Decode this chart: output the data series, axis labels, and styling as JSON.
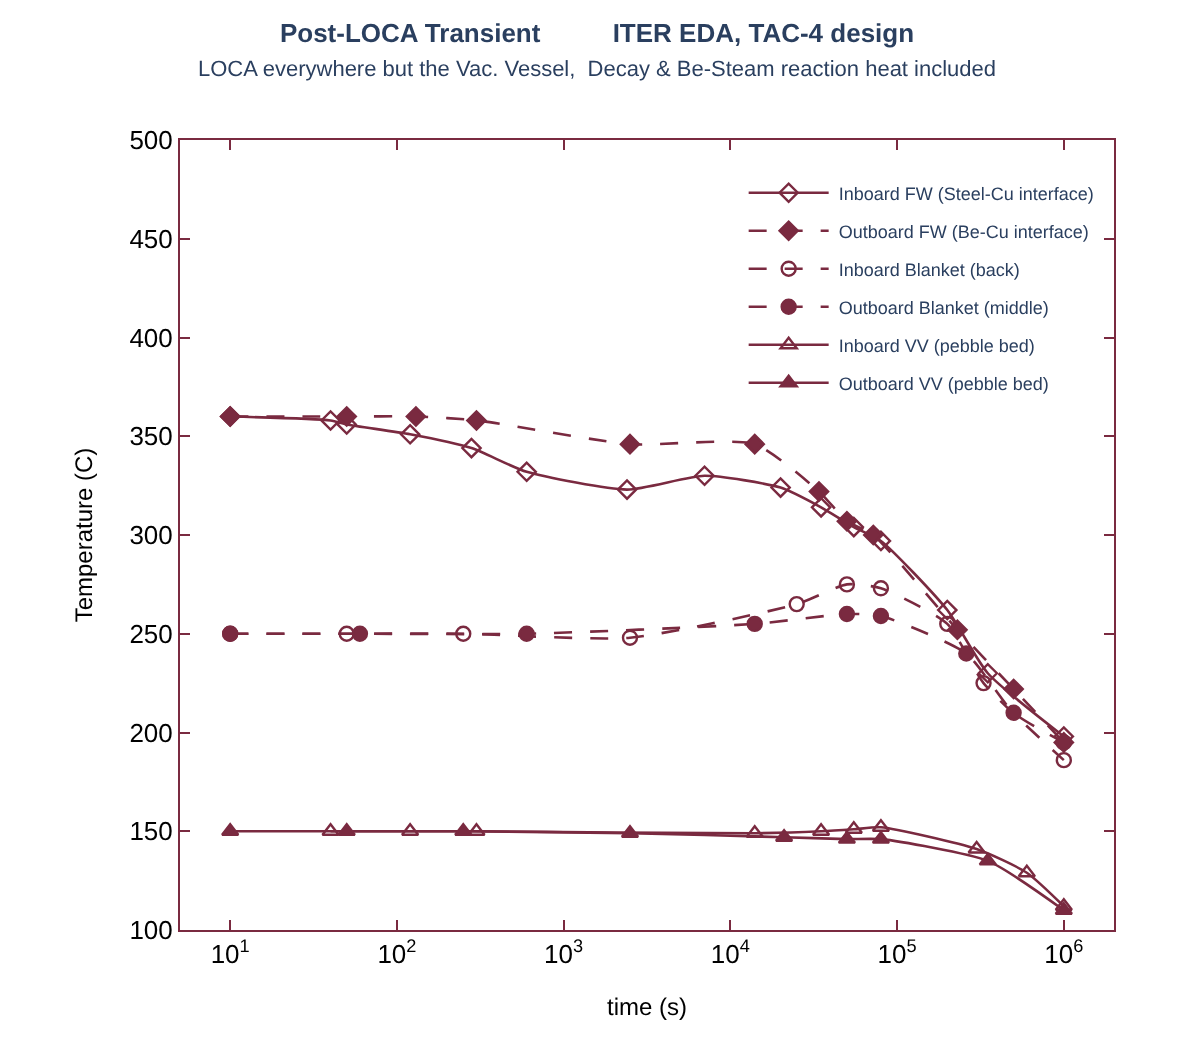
{
  "chart_data": {
    "type": "line",
    "title": "Post-LOCA Transient          ITER EDA, TAC-4 design",
    "subtitle": "LOCA everywhere but the Vac. Vessel,  Decay & Be-Steam reaction heat included",
    "xlabel": "time (s)",
    "ylabel": "Temperature (C)",
    "log": "x",
    "xlim": [
      5,
      2000000
    ],
    "ylim": [
      100,
      500
    ],
    "xticks": [
      {
        "value": 10,
        "label": "10$^{1}$"
      },
      {
        "value": 100,
        "label": "10$^{2}$"
      },
      {
        "value": 1000,
        "label": "10$^{3}$"
      },
      {
        "value": 10000,
        "label": "10$^{4}$"
      },
      {
        "value": 100000,
        "label": "10$^{5}$"
      },
      {
        "value": 1000000,
        "label": "10$^{6}$"
      }
    ],
    "yticks": [
      100,
      150,
      200,
      250,
      300,
      350,
      400,
      450,
      500
    ],
    "legend": "top right",
    "series": [
      {
        "name": "Inboard FW (Steel-Cu interface)",
        "color": "#7a2a40",
        "marker": "diamond-open",
        "line_style": "solid",
        "x": [
          10,
          40,
          50,
          120,
          280,
          600,
          2400,
          7000,
          20000,
          35000,
          55000,
          80000,
          200000,
          350000,
          1000000
        ],
        "values": [
          360,
          358,
          356,
          351,
          344,
          332,
          323,
          330,
          324,
          314,
          304,
          297,
          262,
          230,
          198
        ]
      },
      {
        "name": "Outboard FW (Be-Cu interface)",
        "color": "#7a2a40",
        "marker": "diamond",
        "line_style": "dashed",
        "x": [
          10,
          50,
          130,
          300,
          2500,
          14000,
          34000,
          50000,
          72000,
          230000,
          500000,
          1000000
        ],
        "values": [
          360,
          360,
          360,
          358,
          346,
          346,
          322,
          307,
          300,
          252,
          222,
          195
        ]
      },
      {
        "name": "Inboard Blanket (back)",
        "color": "#7a2a40",
        "marker": "circle-open",
        "line_style": "dashed",
        "x": [
          10,
          50,
          250,
          2500,
          25000,
          50000,
          80000,
          200000,
          330000,
          1000000
        ],
        "values": [
          250,
          250,
          250,
          248,
          265,
          275,
          273,
          255,
          225,
          186
        ]
      },
      {
        "name": "Outboard Blanket (middle)",
        "color": "#7a2a40",
        "marker": "circle",
        "line_style": "dashed",
        "x": [
          10,
          60,
          600,
          14000,
          50000,
          80000,
          260000,
          500000,
          1000000
        ],
        "values": [
          250,
          250,
          250,
          255,
          260,
          259,
          240,
          210,
          195
        ]
      },
      {
        "name": "Inboard VV (pebble bed)",
        "color": "#7a2a40",
        "marker": "triangle-up-open",
        "line_style": "solid",
        "x": [
          40,
          120,
          300,
          14000,
          35000,
          55000,
          80000,
          300000,
          600000,
          1000000
        ],
        "values": [
          150,
          150,
          150,
          149,
          150,
          151,
          152,
          141,
          129,
          112
        ]
      },
      {
        "name": "Outboard VV (pebble bed)",
        "color": "#7a2a40",
        "marker": "triangle-up",
        "line_style": "solid",
        "x": [
          10,
          50,
          250,
          2500,
          21000,
          50000,
          80000,
          350000,
          1000000
        ],
        "values": [
          150,
          150,
          150,
          149,
          147,
          146,
          146,
          135,
          110
        ]
      }
    ]
  }
}
